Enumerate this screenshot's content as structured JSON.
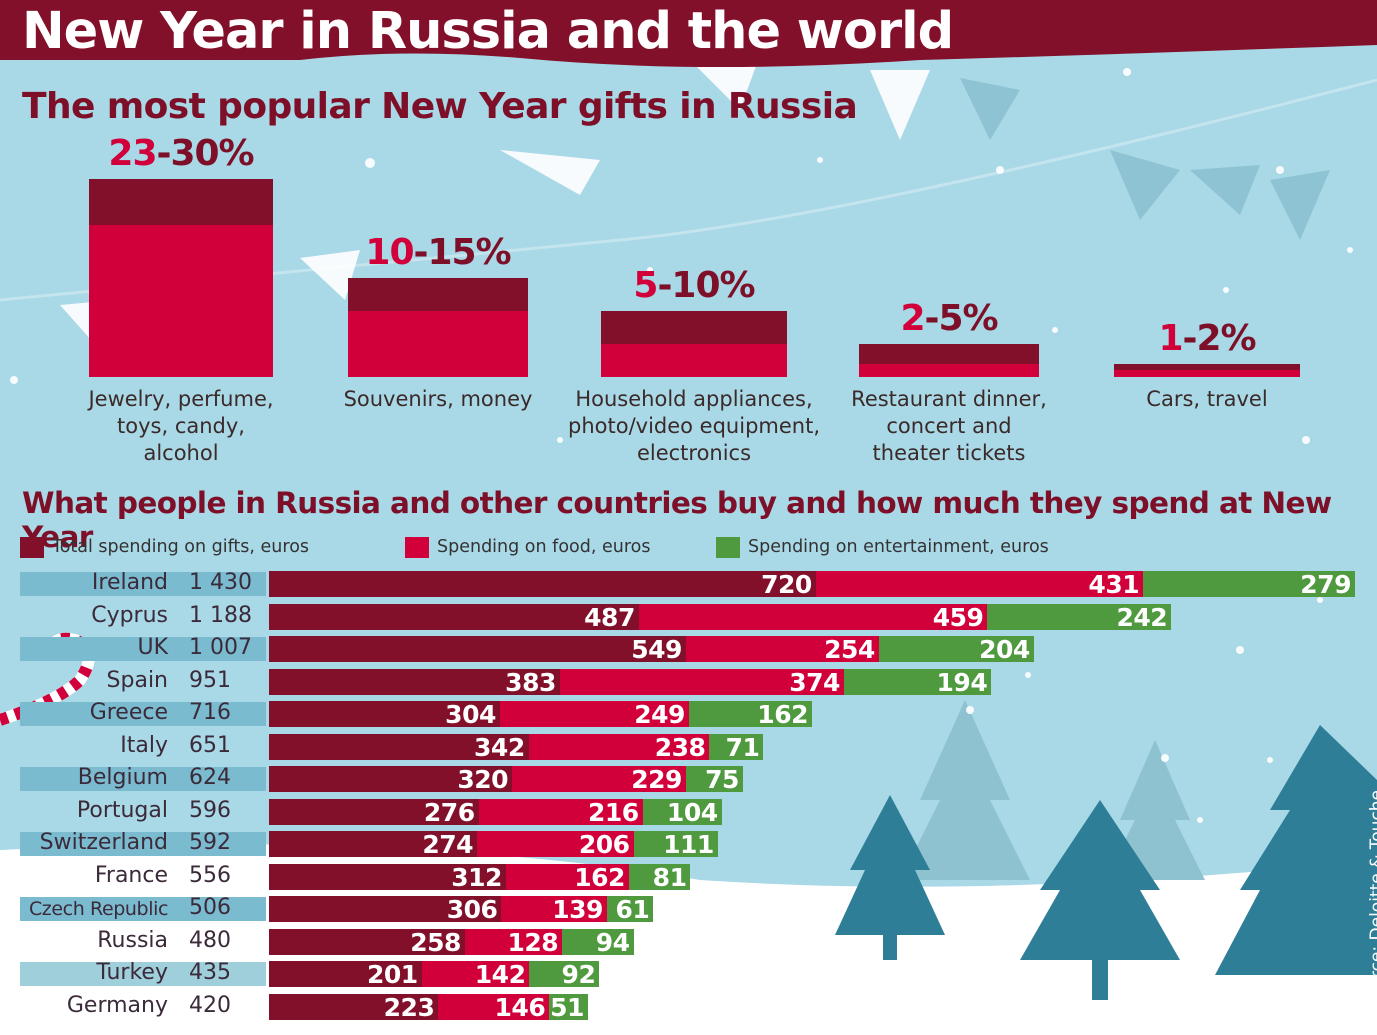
{
  "title": "New Year in Russia and the world",
  "gifts": {
    "title": "The most popular New Year gifts in Russia",
    "items": [
      {
        "pct_lo": "23",
        "pct_hi": "-30%",
        "lo": 23,
        "hi": 30,
        "label": [
          "Jewelry, perfume,",
          "toys, candy,",
          "alcohol"
        ]
      },
      {
        "pct_lo": "10",
        "pct_hi": "-15%",
        "lo": 10,
        "hi": 15,
        "label": [
          "Souvenirs, money"
        ]
      },
      {
        "pct_lo": "5",
        "pct_hi": "-10%",
        "lo": 5,
        "hi": 10,
        "label": [
          "Household appliances,",
          "photo/video equipment,",
          "electronics"
        ]
      },
      {
        "pct_lo": "2",
        "pct_hi": "-5%",
        "lo": 2,
        "hi": 5,
        "label": [
          "Restaurant dinner,",
          "concert and",
          "theater tickets"
        ]
      },
      {
        "pct_lo": "1",
        "pct_hi": "-2%",
        "lo": 1,
        "hi": 2,
        "label": [
          "Cars, travel"
        ]
      }
    ]
  },
  "spending": {
    "title": "What people in Russia and other countries buy and how much they spend at New Year",
    "legend": [
      {
        "label": "Total spending on gifts, euros",
        "color": "#83102a"
      },
      {
        "label": "Spending on food, euros",
        "color": "#d1003b"
      },
      {
        "label": "Spending on entertainment, euros",
        "color": "#4f9a3e"
      }
    ],
    "rows": [
      {
        "country": "Ireland",
        "total": "1 430",
        "gifts": 720,
        "food": 431,
        "entertainment": 279
      },
      {
        "country": "Cyprus",
        "total": "1 188",
        "gifts": 487,
        "food": 459,
        "entertainment": 242
      },
      {
        "country": "UK",
        "total": "1 007",
        "gifts": 549,
        "food": 254,
        "entertainment": 204
      },
      {
        "country": "Spain",
        "total": "951",
        "gifts": 383,
        "food": 374,
        "entertainment": 194
      },
      {
        "country": "Greece",
        "total": "716",
        "gifts": 304,
        "food": 249,
        "entertainment": 162
      },
      {
        "country": "Italy",
        "total": "651",
        "gifts": 342,
        "food": 238,
        "entertainment": 71
      },
      {
        "country": "Belgium",
        "total": "624",
        "gifts": 320,
        "food": 229,
        "entertainment": 75
      },
      {
        "country": "Portugal",
        "total": "596",
        "gifts": 276,
        "food": 216,
        "entertainment": 104
      },
      {
        "country": "Switzerland",
        "total": "592",
        "gifts": 274,
        "food": 206,
        "entertainment": 111
      },
      {
        "country": "France",
        "total": "556",
        "gifts": 312,
        "food": 162,
        "entertainment": 81
      },
      {
        "country": "Czech Republic",
        "total": "506",
        "gifts": 306,
        "food": 139,
        "entertainment": 61
      },
      {
        "country": "Russia",
        "total": "480",
        "gifts": 258,
        "food": 128,
        "entertainment": 94
      },
      {
        "country": "Turkey",
        "total": "435",
        "gifts": 201,
        "food": 142,
        "entertainment": 92
      },
      {
        "country": "Germany",
        "total": "420",
        "gifts": 223,
        "food": 146,
        "entertainment": 51
      }
    ]
  },
  "source": "Source: Deloitte & Touche",
  "chart_data": [
    {
      "type": "bar",
      "title": "The most popular New Year gifts in Russia",
      "categories": [
        "Jewelry, perfume, toys, candy, alcohol",
        "Souvenirs, money",
        "Household appliances, photo/video equipment, electronics",
        "Restaurant dinner, concert and theater tickets",
        "Cars, travel"
      ],
      "series": [
        {
          "name": "low",
          "values": [
            23,
            10,
            5,
            2,
            1
          ]
        },
        {
          "name": "high",
          "values": [
            30,
            15,
            10,
            5,
            2
          ]
        }
      ],
      "unit": "%"
    },
    {
      "type": "bar",
      "orientation": "horizontal",
      "stacked": true,
      "title": "What people in Russia and other countries buy and how much they spend at New Year",
      "categories": [
        "Ireland",
        "Cyprus",
        "UK",
        "Spain",
        "Greece",
        "Italy",
        "Belgium",
        "Portugal",
        "Switzerland",
        "France",
        "Czech Republic",
        "Russia",
        "Turkey",
        "Germany"
      ],
      "totals": [
        1430,
        1188,
        1007,
        951,
        716,
        651,
        624,
        596,
        592,
        556,
        506,
        480,
        435,
        420
      ],
      "series": [
        {
          "name": "Total spending on gifts, euros",
          "values": [
            720,
            487,
            549,
            383,
            304,
            342,
            320,
            276,
            274,
            312,
            306,
            258,
            201,
            223
          ]
        },
        {
          "name": "Spending on food, euros",
          "values": [
            431,
            459,
            254,
            374,
            249,
            238,
            229,
            216,
            206,
            162,
            139,
            128,
            142,
            146
          ]
        },
        {
          "name": "Spending on entertainment, euros",
          "values": [
            279,
            242,
            204,
            194,
            162,
            71,
            75,
            104,
            111,
            81,
            61,
            94,
            92,
            51
          ]
        }
      ],
      "legend_position": "top"
    }
  ]
}
